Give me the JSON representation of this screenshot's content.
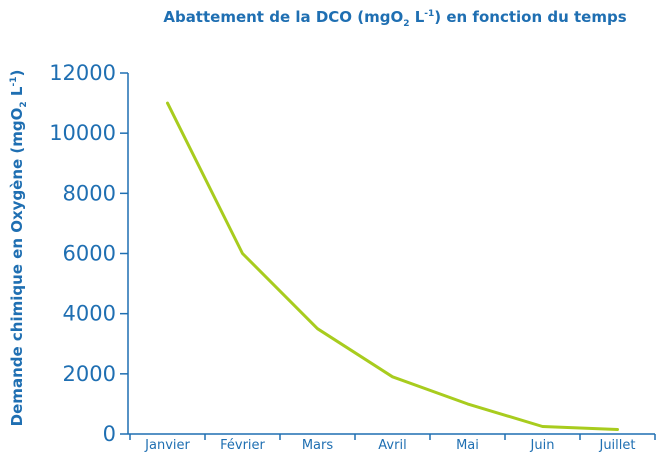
{
  "colors": {
    "text": "#1f6fb2",
    "axis": "#1f6fb2",
    "line": "#a8cc1e",
    "background": "#ffffff"
  },
  "chart_data": {
    "type": "line",
    "title": {
      "before": "Abattement de la DCO (mgO",
      "sub": "2",
      "mid": " L",
      "sup": "-1",
      "after": ") en fonction du temps"
    },
    "ylabel": {
      "before": "Demande chimique en Oxygène (mgO",
      "sub": "2",
      "mid": " L",
      "sup": "-1",
      "after": ")"
    },
    "xlabel": "",
    "categories": [
      "Janvier",
      "Février",
      "Mars",
      "Avril",
      "Mai",
      "Juin",
      "Juillet"
    ],
    "values": [
      11000,
      6000,
      3500,
      1900,
      1000,
      250,
      150
    ],
    "ylim": [
      0,
      12000
    ],
    "yticks": [
      "0",
      "2000",
      "4000",
      "6000",
      "8000",
      "10000",
      "12000"
    ],
    "grid": false,
    "legend": "none"
  }
}
